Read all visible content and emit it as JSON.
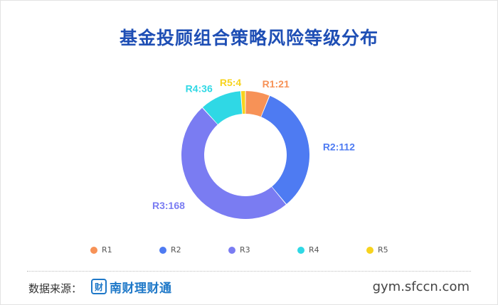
{
  "title": "基金投顾组合策略风险等级分布",
  "chart_data": {
    "type": "pie",
    "title": "基金投顾组合策略风险等级分布",
    "donut": true,
    "categories": [
      "R1",
      "R2",
      "R3",
      "R4",
      "R5"
    ],
    "values": [
      21,
      112,
      168,
      36,
      4
    ],
    "data_labels": [
      "R1:21",
      "R2:112",
      "R3:168",
      "R4:36",
      "R5:4"
    ],
    "colors": [
      "#f79257",
      "#4e7bf2",
      "#7a7cf2",
      "#2fd8e5",
      "#f7d31e"
    ],
    "legend_position": "bottom"
  },
  "footer": {
    "source_label": "数据来源：",
    "logo_text": "南财理财通",
    "logo_mark": "财",
    "website": "gym.sfccn.com"
  }
}
